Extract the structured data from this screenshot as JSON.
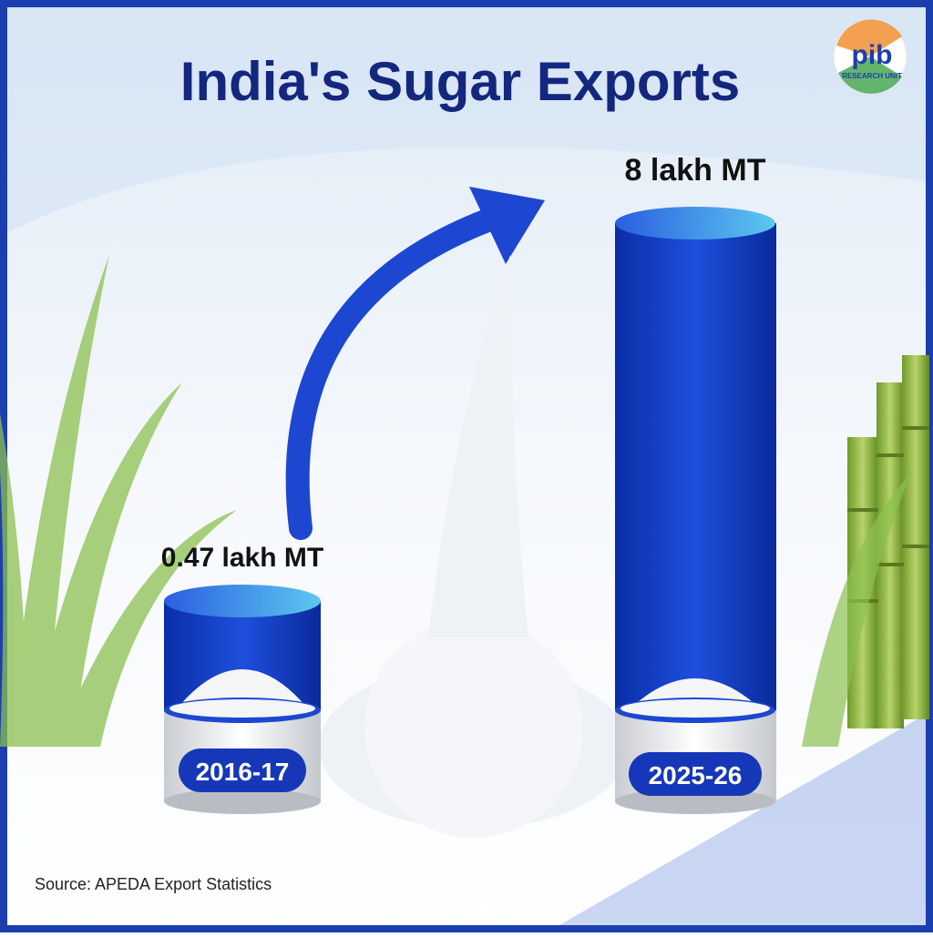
{
  "header": {
    "title": "India's Sugar Exports"
  },
  "logo": {
    "text": "pib",
    "subtitle": "RESEARCH UNIT"
  },
  "bars": [
    {
      "label": "0.47 lakh MT",
      "period": "2016-17"
    },
    {
      "label": "8 lakh MT",
      "period": "2025-26"
    }
  ],
  "footer": {
    "source": "Source: APEDA Export Statistics"
  }
}
